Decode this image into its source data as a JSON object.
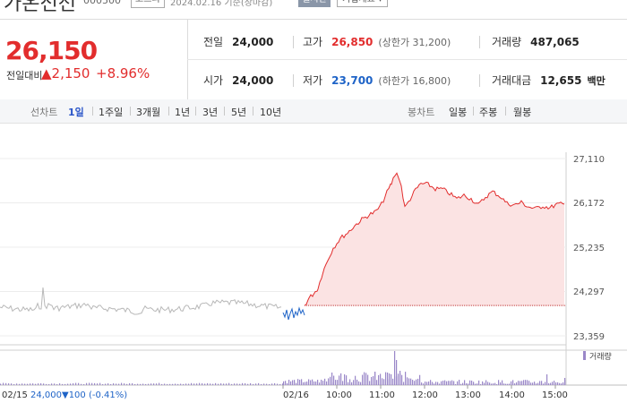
{
  "header": {
    "stock_name": "가온전선",
    "stock_code": "000500",
    "market": "코스피",
    "date_text": "2024.02.16 기준(장마감)",
    "realtime_label": "실시간",
    "company_info_label": "기업개요 ▾"
  },
  "quote": {
    "current_price": "26,150",
    "change_label": "전일대비",
    "change_value": "▲2,150",
    "change_percent": "+8.96%",
    "fields": {
      "prev_close": {
        "label": "전일",
        "value": "24,000"
      },
      "high": {
        "label": "고가",
        "value": "26,850",
        "sub": "(상한가 31,200)"
      },
      "volume": {
        "label": "거래량",
        "value": "487,065"
      },
      "open": {
        "label": "시가",
        "value": "24,000"
      },
      "low": {
        "label": "저가",
        "value": "23,700",
        "sub": "(하한가 16,800)"
      },
      "amount": {
        "label": "거래대금",
        "value": "12,655",
        "unit": "백만"
      }
    }
  },
  "toolbar": {
    "line_chart_label": "선차트",
    "periods": [
      "1일",
      "1주일",
      "3개월",
      "1년",
      "3년",
      "5년",
      "10년"
    ],
    "selected_period": "1일",
    "candle_chart_label": "봉차트",
    "candle_periods": [
      "일봉",
      "주봉",
      "월봉"
    ]
  },
  "chart_data": {
    "type": "line",
    "y_ticks": [
      "27,110",
      "26,172",
      "25,235",
      "24,297",
      "23,359"
    ],
    "ylim": [
      23359,
      27110
    ],
    "reference_price": 24000,
    "x_tick_labels": [
      "02/16",
      "10:00",
      "11:00",
      "12:00",
      "13:00",
      "14:00",
      "15:00"
    ],
    "volume_label": "거래량",
    "prev_day_label": "02/15",
    "prev_day_close": "24,000",
    "prev_day_change": "▼100 (-0.41%)",
    "colors": {
      "up": "#e22d2d",
      "down": "#1e63c7",
      "prev_day": "#b8b8b8",
      "fill": "#fbe3e3",
      "volume": "#9a87c8"
    }
  }
}
